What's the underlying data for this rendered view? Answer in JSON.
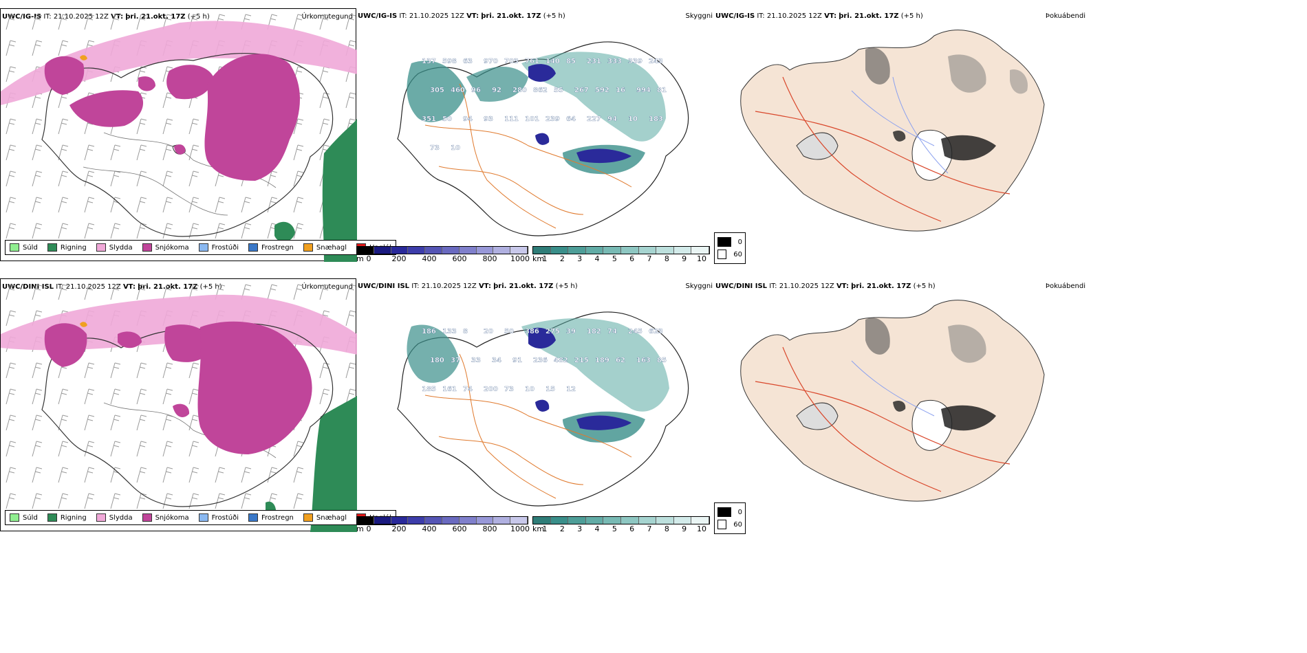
{
  "rows": [
    {
      "model_label": "UWC/IG-IS",
      "it_label": "IT:",
      "it_value": "21.10.2025 12Z",
      "vt_label": "VT:",
      "vt_value": "þri. 21.okt. 17Z",
      "lead": "(+5 h)"
    },
    {
      "model_label": "UWC/DINI ISL",
      "it_label": "IT:",
      "it_value": "21.10.2025 12Z",
      "vt_label": "VT:",
      "vt_value": "þri. 21.okt. 17Z",
      "lead": "(+5 h)"
    }
  ],
  "panel_titles": {
    "precip_type": "Úrkomutegund",
    "visibility": "Skyggni",
    "fog": "Þokuábendi"
  },
  "precip_legend": [
    {
      "label": "Súld",
      "color": "#90ee90"
    },
    {
      "label": "Rigning",
      "color": "#2e8b57"
    },
    {
      "label": "Slydda",
      "color": "#f0a8d8"
    },
    {
      "label": "Snjókoma",
      "color": "#c0459a"
    },
    {
      "label": "Frostúði",
      "color": "#8ab8f0"
    },
    {
      "label": "Frostregn",
      "color": "#3a78c8"
    },
    {
      "label": "Snæhagl",
      "color": "#f0a020"
    },
    {
      "label": "Haglél",
      "color": "#e01818"
    }
  ],
  "visibility_scale_m": {
    "unit": "m",
    "ticks": [
      "0",
      "200",
      "400",
      "600",
      "800",
      "1000"
    ]
  },
  "visibility_scale_km": {
    "unit": "km",
    "ticks": [
      "1",
      "2",
      "3",
      "4",
      "5",
      "6",
      "7",
      "8",
      "9",
      "10"
    ]
  },
  "fog_legend": [
    "0",
    "60"
  ],
  "visibility_labels": [
    [
      "137",
      "598",
      "63",
      "970",
      "703",
      "761",
      "140",
      "85",
      "231",
      "333",
      "339",
      "243",
      "305",
      "460",
      "96",
      "92",
      "280",
      "862",
      "55",
      "267",
      "592",
      "16",
      "994",
      "81",
      "351",
      "50",
      "94",
      "93",
      "111",
      "101",
      "239",
      "64",
      "227",
      "94",
      "10",
      "183",
      "73",
      "10"
    ],
    [
      "186",
      "133",
      "8",
      "20",
      "50",
      "386",
      "275",
      "39",
      "182",
      "74",
      "245",
      "623",
      "180",
      "37",
      "33",
      "34",
      "91",
      "236",
      "482",
      "215",
      "189",
      "62",
      "163",
      "85",
      "185",
      "161",
      "74",
      "200",
      "73",
      "10",
      "15",
      "12"
    ]
  ],
  "colors": {
    "rain_green": "#2e8b57",
    "snow_magenta": "#c0459a",
    "sleet_pink": "#f0a8d8",
    "vis_teal": "#3a8f8a",
    "vis_blue": "#2a2a9a",
    "road_orange": "#e07a2e",
    "land_beige": "#f5e4d5",
    "fog_red": "#d9472b"
  }
}
